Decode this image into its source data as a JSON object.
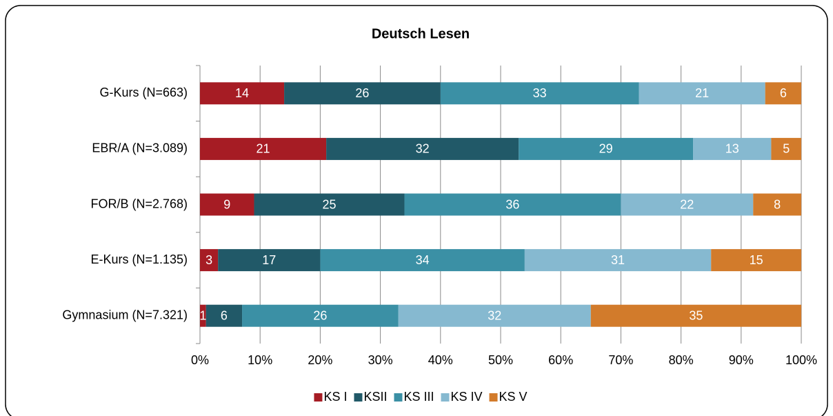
{
  "chart_data": {
    "type": "stacked-bar-horizontal",
    "title": "Deutsch Lesen",
    "categories": [
      "G-Kurs (N=663)",
      "EBR/A (N=3.089)",
      "FOR/B (N=2.768)",
      "E-Kurs (N=1.135)",
      "Gymnasium (N=7.321)"
    ],
    "series": [
      {
        "name": "KS I",
        "color": "#a61c24",
        "values": [
          14,
          21,
          9,
          3,
          1
        ]
      },
      {
        "name": "KSII",
        "color": "#215968",
        "values": [
          26,
          32,
          25,
          17,
          6
        ]
      },
      {
        "name": "KS III",
        "color": "#3b90a5",
        "values": [
          33,
          29,
          36,
          34,
          26
        ]
      },
      {
        "name": "KS IV",
        "color": "#86b9d0",
        "values": [
          21,
          13,
          22,
          31,
          32
        ]
      },
      {
        "name": "KS V",
        "color": "#d27b2b",
        "values": [
          6,
          5,
          8,
          15,
          35
        ]
      }
    ],
    "xlim": [
      0,
      100
    ],
    "xticks": [
      {
        "value": 0,
        "label": "0%"
      },
      {
        "value": 10,
        "label": "10%"
      },
      {
        "value": 20,
        "label": "20%"
      },
      {
        "value": 30,
        "label": "30%"
      },
      {
        "value": 40,
        "label": "40%"
      },
      {
        "value": 50,
        "label": "50%"
      },
      {
        "value": 60,
        "label": "60%"
      },
      {
        "value": 70,
        "label": "70%"
      },
      {
        "value": 80,
        "label": "80%"
      },
      {
        "value": 90,
        "label": "90%"
      },
      {
        "value": 100,
        "label": "100%"
      }
    ],
    "grid": true,
    "legend": "bottom"
  }
}
